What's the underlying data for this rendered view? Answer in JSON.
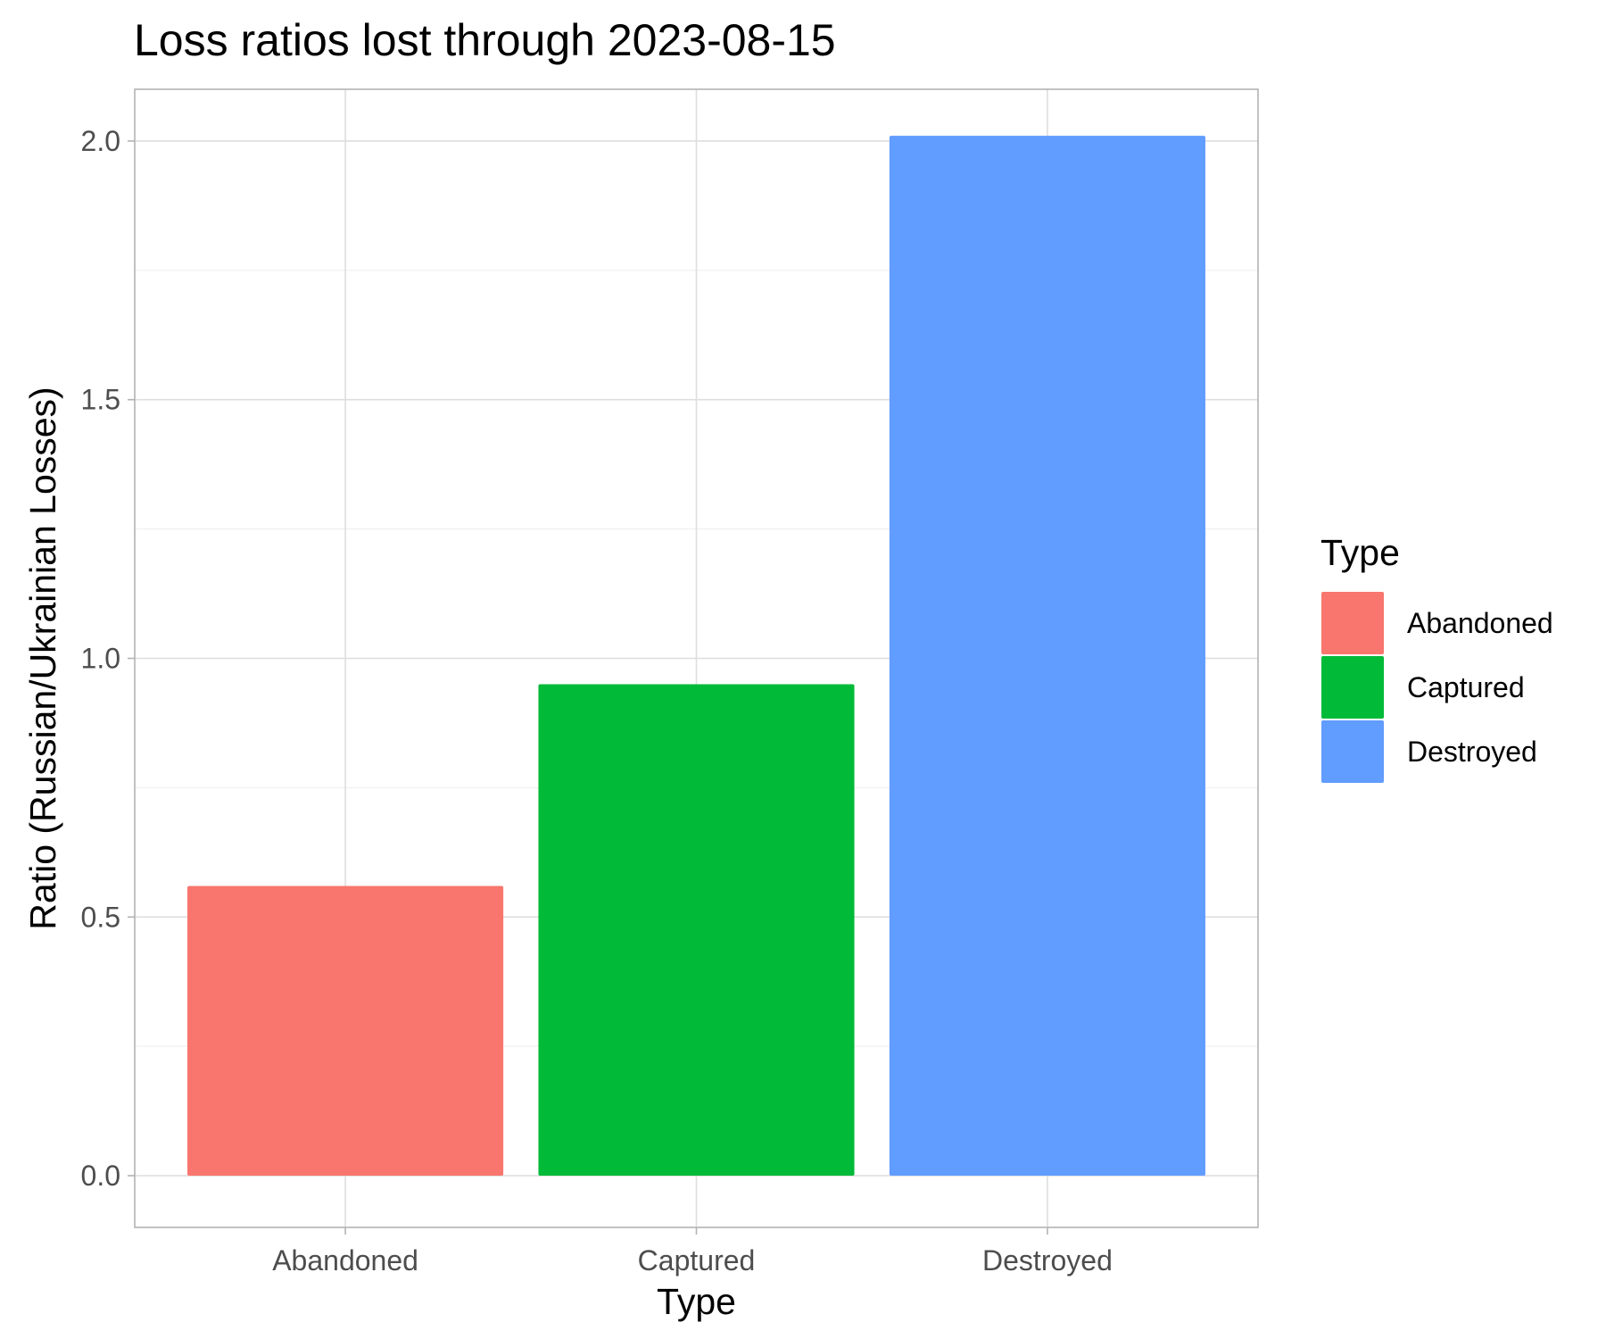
{
  "chart_data": {
    "type": "bar",
    "title": "Loss ratios lost through 2023-08-15",
    "xlabel": "Type",
    "ylabel": "Ratio (Russian/Ukrainian Losses)",
    "categories": [
      "Abandoned",
      "Captured",
      "Destroyed"
    ],
    "values": [
      0.56,
      0.95,
      2.01
    ],
    "colors": [
      "#F8766D",
      "#00BA38",
      "#619CFF"
    ],
    "ylim": [
      -0.1,
      2.1
    ],
    "yticks": [
      0.0,
      0.5,
      1.0,
      1.5,
      2.0
    ],
    "ytick_labels": [
      "0.0",
      "0.5",
      "1.0",
      "1.5",
      "2.0"
    ],
    "grid": true,
    "legend": {
      "title": "Type",
      "position": "right",
      "entries": [
        "Abandoned",
        "Captured",
        "Destroyed"
      ]
    }
  }
}
